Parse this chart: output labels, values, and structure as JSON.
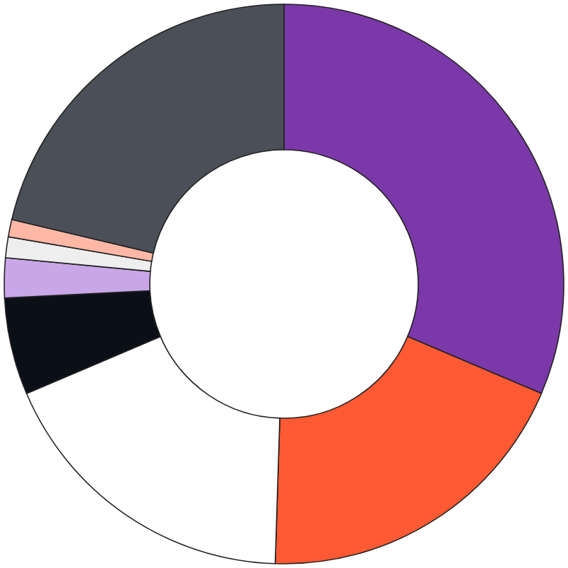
{
  "chart_data": {
    "type": "donut",
    "categories": [
      null,
      null,
      null,
      null,
      null,
      null,
      null,
      null
    ],
    "values": [
      31.4,
      19.1,
      18.1,
      5.6,
      2.3,
      1.2,
      1.0,
      21.3
    ],
    "colors": [
      "#7b38a8",
      "#ff5a33",
      "#ffffff",
      "#0b0f17",
      "#c9a6e8",
      "#eeeeee",
      "#ffb8a6",
      "#4a4f58"
    ],
    "legend": false
  }
}
